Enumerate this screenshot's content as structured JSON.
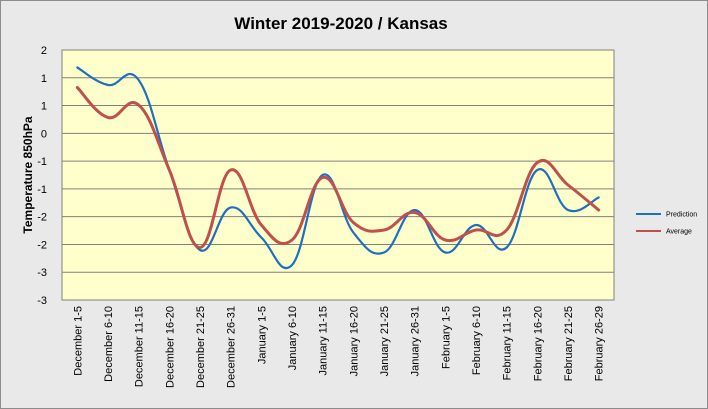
{
  "chart_data": {
    "type": "line",
    "title": "Winter 2019-2020 / Kansas",
    "xlabel": "",
    "ylabel": "Temperature 850hPa",
    "ylim": [
      -3,
      2
    ],
    "y_tick_labels": [
      "2",
      "1",
      "1",
      "0",
      "-1",
      "-1",
      "-2",
      "-2",
      "-3",
      "-3"
    ],
    "grid": true,
    "legend_position": "right",
    "categories": [
      "December 1-5",
      "December 6-10",
      "December 11-15",
      "December 16-20",
      "December 21-25",
      "December 26-31",
      "January 1-5",
      "January 6-10",
      "January 11-15",
      "January 16-20",
      "January 21-25",
      "January 26-31",
      "February 1-5",
      "February 6-10",
      "February 11-15",
      "February 16-20",
      "February 21-25",
      "February 26-29"
    ],
    "series": [
      {
        "name": "Prediction",
        "color": "#1f6fbf",
        "values": [
          1.65,
          1.3,
          1.4,
          -0.4,
          -2.0,
          -1.15,
          -1.75,
          -2.3,
          -0.5,
          -1.65,
          -2.05,
          -1.2,
          -2.05,
          -1.5,
          -1.95,
          -0.4,
          -1.2,
          -0.95
        ]
      },
      {
        "name": "Average",
        "color": "#c0504d",
        "values": [
          1.25,
          0.65,
          0.9,
          -0.4,
          -1.95,
          -0.4,
          -1.5,
          -1.8,
          -0.55,
          -1.45,
          -1.6,
          -1.25,
          -1.8,
          -1.6,
          -1.6,
          -0.25,
          -0.7,
          -1.2
        ]
      }
    ]
  }
}
